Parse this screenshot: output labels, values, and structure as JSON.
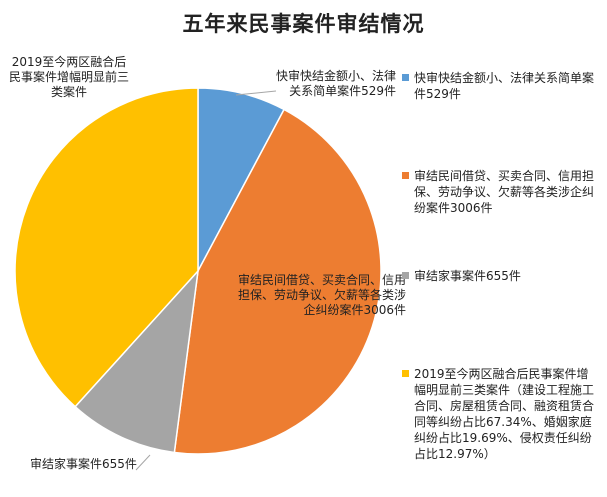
{
  "chart_data": {
    "type": "pie",
    "title": "五年来民事案件审结情况",
    "slices": [
      {
        "legend": "快审快结金额小、法律关系简单案件529件",
        "label": "快审快结金额小、法律关系简单案件529件",
        "value": 529,
        "color": "#5b9bd5"
      },
      {
        "legend": "审结民间借贷、买卖合同、信用担保、劳动争议、欠薪等各类涉企纠纷案件3006件",
        "label": "审结民间借贷、买卖合同、信用担保、劳动争议、欠薪等各类涉企纠纷案件3006件",
        "value": 3006,
        "color": "#ed7d31"
      },
      {
        "legend": "审结家事案件655件",
        "label": "审结家事案件655件",
        "value": 655,
        "color": "#a5a5a5"
      },
      {
        "legend": "2019至今两区融合后民事案件增幅明显前三类案件（建设工程施工合同、房屋租赁合同、融资租赁合同等纠纷占比67.34%、婚姻家庭纠纷占比19.69%、侵权责任纠纷占比12.97%）",
        "label": "2019至今两区融合后民事案件增幅明显前三类案件",
        "value": 2600,
        "color": "#ffc000"
      }
    ],
    "legend_position": "right"
  }
}
